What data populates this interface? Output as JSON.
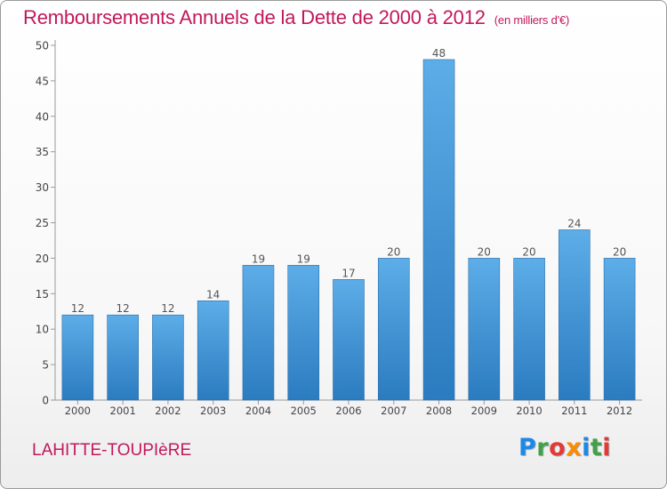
{
  "header": {
    "title": "Remboursements Annuels de la Dette de 2000 à 2012",
    "unit": "(en milliers d'€)"
  },
  "footer": {
    "place": "LAHITTE-TOUPIèRE",
    "brand": "Proxiti",
    "brand_letter_colors": [
      "#1e88e5",
      "#43a047",
      "#e53935",
      "#fb8c00",
      "#1e88e5",
      "#43a047",
      "#e53935"
    ]
  },
  "chart_data": {
    "type": "bar",
    "title": "Remboursements Annuels de la Dette de 2000 à 2012",
    "subtitle": "(en milliers d'€)",
    "xlabel": "",
    "ylabel": "",
    "categories": [
      "2000",
      "2001",
      "2002",
      "2003",
      "2004",
      "2005",
      "2006",
      "2007",
      "2008",
      "2009",
      "2010",
      "2011",
      "2012"
    ],
    "values": [
      12,
      12,
      12,
      14,
      19,
      19,
      17,
      20,
      48,
      20,
      20,
      24,
      20
    ],
    "ylim": [
      0,
      50
    ],
    "yticks": [
      0,
      5,
      10,
      15,
      20,
      25,
      30,
      35,
      40,
      45,
      50
    ],
    "grid": false,
    "legend": "none",
    "bar_color_top": "#5dade8",
    "bar_color_bottom": "#2b7bc0",
    "bar_stroke": "#2d6fa8"
  }
}
